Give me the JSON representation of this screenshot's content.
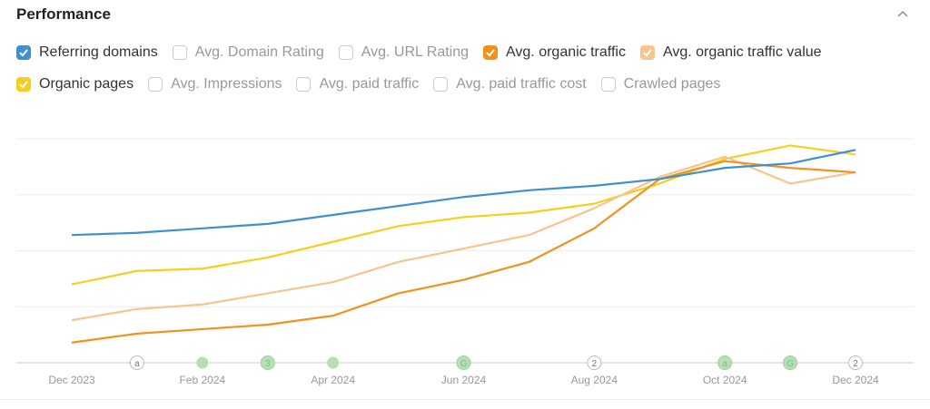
{
  "header": {
    "title": "Performance",
    "collapse_icon": "chevron-up-icon"
  },
  "legend": {
    "row1": [
      {
        "label": "Referring domains",
        "checked": true,
        "color": "#3f8fd2"
      },
      {
        "label": "Avg. Domain Rating",
        "checked": false
      },
      {
        "label": "Avg. URL Rating",
        "checked": false
      },
      {
        "label": "Avg. organic traffic",
        "checked": true,
        "color": "#f0921e"
      },
      {
        "label": "Avg. organic traffic value",
        "checked": true,
        "color": "#f7c58c"
      }
    ],
    "row2": [
      {
        "label": "Organic pages",
        "checked": true,
        "color": "#f5cf1f"
      },
      {
        "label": "Avg. Impressions",
        "checked": false
      },
      {
        "label": "Avg. paid traffic",
        "checked": false
      },
      {
        "label": "Avg. paid traffic cost",
        "checked": false
      },
      {
        "label": "Crawled pages",
        "checked": false
      }
    ]
  },
  "chart_data": {
    "type": "line",
    "x": [
      "Dec 2023",
      "Jan 2024",
      "Feb 2024",
      "Mar 2024",
      "Apr 2024",
      "May 2024",
      "Jun 2024",
      "Jul 2024",
      "Aug 2024",
      "Sep 2024",
      "Oct 2024",
      "Nov 2024",
      "Dec 2024"
    ],
    "tick_labels": [
      "Dec 2023",
      "Feb 2024",
      "Apr 2024",
      "Jun 2024",
      "Aug 2024",
      "Oct 2024",
      "Dec 2024"
    ],
    "ylim": [
      0,
      100
    ],
    "grid": true,
    "y_axis_labels": false,
    "series": [
      {
        "name": "Organic pages",
        "color": "#f5cf1f",
        "values": [
          35,
          41,
          42,
          47,
          54,
          61,
          65,
          67,
          71,
          80,
          91,
          97,
          93
        ]
      },
      {
        "name": "Avg. organic traffic value",
        "color": "#f7c58c",
        "values": [
          19,
          24,
          26,
          31,
          36,
          45,
          51,
          57,
          69,
          83,
          92,
          80,
          85
        ]
      },
      {
        "name": "Avg. organic traffic",
        "color": "#f0921e",
        "values": [
          9,
          13,
          15,
          17,
          21,
          31,
          37,
          45,
          60,
          82,
          90,
          87,
          85
        ]
      },
      {
        "name": "Referring domains",
        "color": "#3f8fd2",
        "values": [
          57,
          58,
          60,
          62,
          66,
          70,
          74,
          77,
          79,
          82,
          87,
          89,
          95
        ]
      }
    ],
    "annotations": [
      {
        "x": "Jan 2024",
        "label": "a",
        "type": "outline"
      },
      {
        "x": "Feb 2024",
        "label": "",
        "type": "green"
      },
      {
        "x": "Mar 2024",
        "label": "3",
        "type": "green"
      },
      {
        "x": "Apr 2024",
        "label": "",
        "type": "green"
      },
      {
        "x": "Jun 2024",
        "label": "G",
        "type": "green"
      },
      {
        "x": "Aug 2024",
        "label": "2",
        "type": "outline"
      },
      {
        "x": "Oct 2024",
        "label": "a",
        "type": "green"
      },
      {
        "x": "Nov 2024",
        "label": "G",
        "type": "green"
      },
      {
        "x": "Dec 2024",
        "label": "2",
        "type": "outline"
      }
    ]
  }
}
